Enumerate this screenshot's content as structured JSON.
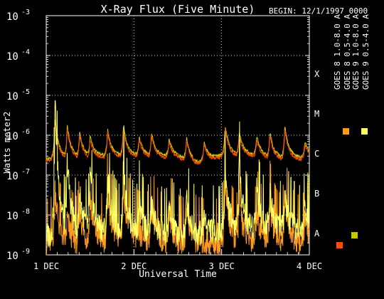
{
  "chart_data": {
    "type": "line",
    "title": "X-Ray Flux (Five Minute)",
    "subtitle": "BEGIN: 12/1/1997 0000",
    "xlabel": "Universal Time",
    "ylabel": "Watts meter2",
    "yscale": "log",
    "ylim": [
      1e-09,
      0.001
    ],
    "y_ticks": [
      {
        "base": "10",
        "exp": "-3"
      },
      {
        "base": "10",
        "exp": "-4"
      },
      {
        "base": "10",
        "exp": "-5"
      },
      {
        "base": "10",
        "exp": "-6"
      },
      {
        "base": "10",
        "exp": "-7"
      },
      {
        "base": "10",
        "exp": "-8"
      },
      {
        "base": "10",
        "exp": "-9"
      }
    ],
    "xlim": [
      0,
      3
    ],
    "x_ticks": [
      {
        "value": 0,
        "label": "1 DEC"
      },
      {
        "value": 1,
        "label": "2 DEC"
      },
      {
        "value": 2,
        "label": "3 DEC"
      },
      {
        "value": 3,
        "label": "4 DEC"
      }
    ],
    "flare_classes": [
      {
        "label": "X",
        "value": 0.0001
      },
      {
        "label": "M",
        "value": 1e-05
      },
      {
        "label": "C",
        "value": 1e-06
      },
      {
        "label": "B",
        "value": 1e-07
      },
      {
        "label": "A",
        "value": 1e-08
      }
    ],
    "grid": true,
    "series": [
      {
        "name": "GOES 8 1.0-8.0 A",
        "color": "#ff4a00",
        "baseline": [
          [
            0,
            2.3e-07
          ],
          [
            0.5,
            2.6e-07
          ],
          [
            1.0,
            2.8e-07
          ],
          [
            1.5,
            2.6e-07
          ],
          [
            1.7,
            1.8e-07
          ],
          [
            2.0,
            2.8e-07
          ],
          [
            2.3,
            3e-07
          ],
          [
            2.6,
            2.4e-07
          ],
          [
            2.9,
            2.4e-07
          ],
          [
            3.0,
            2.7e-07
          ]
        ],
        "peaks": [
          [
            0.1,
            2e-06
          ],
          [
            0.24,
            1.5e-06
          ],
          [
            0.38,
            1e-06
          ],
          [
            0.5,
            8e-07
          ],
          [
            0.7,
            1.2e-06
          ],
          [
            0.88,
            1.5e-06
          ],
          [
            1.06,
            8e-07
          ],
          [
            1.2,
            1e-06
          ],
          [
            1.4,
            7e-07
          ],
          [
            1.6,
            8e-07
          ],
          [
            1.8,
            6e-07
          ],
          [
            2.04,
            1.5e-06
          ],
          [
            2.2,
            1e-06
          ],
          [
            2.4,
            8e-07
          ],
          [
            2.55,
            1e-06
          ],
          [
            2.72,
            1.5e-06
          ],
          [
            2.95,
            6e-07
          ]
        ]
      },
      {
        "name": "GOES 8 0.5-4.0 A",
        "color": "#ff9a20",
        "baseline": [
          [
            0,
            2e-09
          ],
          [
            0.5,
            2e-09
          ],
          [
            1.0,
            3e-09
          ],
          [
            1.5,
            2e-09
          ],
          [
            2.0,
            2e-09
          ],
          [
            2.5,
            2.5e-09
          ],
          [
            3.0,
            2e-09
          ]
        ],
        "peaks": [
          [
            0.1,
            5e-08
          ],
          [
            0.24,
            8e-09
          ],
          [
            0.38,
            1.5e-08
          ],
          [
            0.5,
            3e-08
          ],
          [
            0.7,
            4e-08
          ],
          [
            0.88,
            6e-08
          ],
          [
            1.2,
            2e-08
          ],
          [
            1.4,
            1.5e-08
          ],
          [
            1.6,
            2e-08
          ],
          [
            2.04,
            8e-08
          ],
          [
            2.2,
            3e-08
          ],
          [
            2.4,
            1.5e-08
          ],
          [
            2.55,
            2e-08
          ],
          [
            2.72,
            4e-08
          ],
          [
            2.95,
            1e-08
          ]
        ]
      },
      {
        "name": "GOES 9 0.5-4.0 A",
        "color": "#ffff66",
        "baseline": [
          [
            0,
            3e-09
          ],
          [
            0.5,
            4e-09
          ],
          [
            1.0,
            4e-09
          ],
          [
            1.5,
            3e-09
          ],
          [
            2.0,
            4e-09
          ],
          [
            2.5,
            5e-09
          ],
          [
            3.0,
            4e-09
          ]
        ],
        "peaks": [
          [
            0.1,
            1e-05
          ],
          [
            0.24,
            2.5e-07
          ],
          [
            0.38,
            4e-08
          ],
          [
            0.5,
            1e-07
          ],
          [
            0.7,
            1e-07
          ],
          [
            0.88,
            2e-07
          ],
          [
            1.06,
            2e-08
          ],
          [
            1.2,
            2e-08
          ],
          [
            1.4,
            1.5e-08
          ],
          [
            1.6,
            3e-08
          ],
          [
            1.8,
            1e-08
          ],
          [
            2.04,
            1.5e-07
          ],
          [
            2.2,
            2.5e-07
          ],
          [
            2.4,
            6e-08
          ],
          [
            2.55,
            4e-08
          ],
          [
            2.72,
            3e-08
          ],
          [
            2.95,
            2e-08
          ]
        ]
      },
      {
        "name": "GOES 9 1.0-8.0 A",
        "color": "#c8c800",
        "baseline": [
          [
            0,
            2.6e-07
          ],
          [
            0.5,
            3e-07
          ],
          [
            1.0,
            3.2e-07
          ],
          [
            1.5,
            3e-07
          ],
          [
            1.7,
            2e-07
          ],
          [
            2.0,
            3.2e-07
          ],
          [
            2.3,
            3.4e-07
          ],
          [
            2.6,
            2.8e-07
          ],
          [
            2.9,
            2.8e-07
          ],
          [
            3.0,
            3e-07
          ]
        ],
        "peaks": [
          [
            0.1,
            2.5e-06
          ],
          [
            0.24,
            1.8e-06
          ],
          [
            0.38,
            1.2e-06
          ],
          [
            0.5,
            1e-06
          ],
          [
            0.7,
            1.4e-06
          ],
          [
            0.88,
            1.8e-06
          ],
          [
            1.06,
            9e-07
          ],
          [
            1.2,
            1.2e-06
          ],
          [
            1.4,
            8e-07
          ],
          [
            1.6,
            9e-07
          ],
          [
            1.8,
            7e-07
          ],
          [
            2.04,
            1.8e-06
          ],
          [
            2.2,
            1.2e-06
          ],
          [
            2.4,
            1e-06
          ],
          [
            2.55,
            1.2e-06
          ],
          [
            2.72,
            1.8e-06
          ],
          [
            2.95,
            7e-07
          ]
        ]
      }
    ]
  }
}
